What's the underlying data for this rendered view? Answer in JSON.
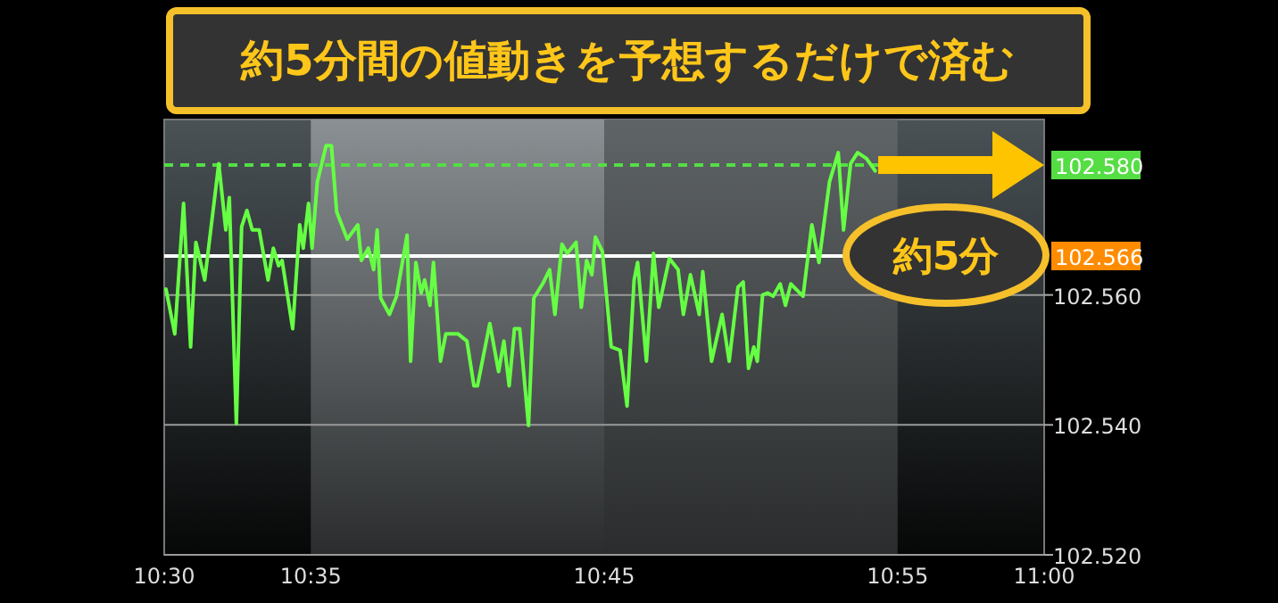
{
  "chart_data": {
    "type": "line",
    "title": "約5分間の値動きを予想するだけで済む",
    "x": [
      10.501,
      10.506,
      10.511,
      10.515,
      10.518,
      10.523,
      10.531,
      10.535,
      10.537,
      10.541,
      10.544,
      10.547,
      10.55,
      10.554,
      10.559,
      10.562,
      10.565,
      10.567,
      10.573,
      10.577,
      10.579,
      10.582,
      10.584,
      10.587,
      10.592,
      10.595,
      10.598,
      10.604,
      10.61,
      10.612,
      10.616,
      10.619,
      10.621,
      10.623,
      10.628,
      10.632,
      10.638,
      10.64,
      10.643,
      10.646,
      10.648,
      10.651,
      10.653,
      10.657,
      10.66,
      10.667,
      10.672,
      10.676,
      10.678,
      10.685,
      10.69,
      10.693,
      10.696,
      10.699,
      10.702,
      10.707,
      10.71,
      10.715,
      10.719,
      10.722,
      10.726,
      10.729,
      10.734,
      10.737,
      10.74,
      10.743,
      10.745,
      10.749,
      10.754,
      10.759,
      10.763,
      10.767,
      10.769,
      10.774,
      10.778,
      10.781,
      10.787,
      10.792,
      10.795,
      10.799,
      10.804,
      10.806,
      10.811,
      10.817,
      10.821,
      10.826,
      10.829,
      10.832,
      10.835,
      10.837,
      10.84,
      10.843,
      10.846,
      10.85,
      10.853,
      10.856,
      10.863,
      10.868,
      10.872,
      10.878,
      10.883,
      10.886,
      10.89,
      10.894,
      10.899,
      10.904
    ],
    "series": [
      {
        "color": "#66ff44",
        "values": [
          102.5609,
          102.554,
          102.5741,
          102.552,
          102.5681,
          102.5623,
          102.5802,
          102.57,
          102.575,
          102.5402,
          102.5705,
          102.573,
          102.57,
          102.57,
          102.5623,
          102.5672,
          102.5645,
          102.5653,
          102.5548,
          102.5708,
          102.5672,
          102.5741,
          102.5672,
          102.5774,
          102.583,
          102.583,
          102.5728,
          102.5686,
          102.5708,
          102.5653,
          102.5672,
          102.5639,
          102.57,
          102.5595,
          102.557,
          102.5598,
          102.5692,
          102.5498,
          102.565,
          102.5603,
          102.5623,
          102.5584,
          102.565,
          102.5498,
          102.554,
          102.554,
          102.5529,
          102.546,
          102.546,
          102.5556,
          102.5482,
          102.5529,
          102.546,
          102.5548,
          102.5548,
          102.5399,
          102.5595,
          102.5617,
          102.5639,
          102.557,
          102.5678,
          102.5664,
          102.5681,
          102.5581,
          102.5653,
          102.5631,
          102.5689,
          102.5667,
          102.552,
          102.5515,
          102.5429,
          102.5623,
          102.565,
          102.5498,
          102.5664,
          102.5581,
          102.5656,
          102.5639,
          102.557,
          102.5631,
          102.557,
          102.5636,
          102.5498,
          102.557,
          102.5498,
          102.5612,
          102.562,
          102.5487,
          102.552,
          102.5498,
          102.56,
          102.5603,
          102.5598,
          102.5617,
          102.5584,
          102.5617,
          102.5598,
          102.5708,
          102.565,
          102.5774,
          102.5819,
          102.57,
          102.5802,
          102.5819,
          102.581,
          102.5791
        ]
      }
    ],
    "xlim": [
      10.5,
      11.0
    ],
    "xticks": [
      {
        "value": 10.5,
        "label": "10:30"
      },
      {
        "value": 10.5833,
        "label": "10:35"
      },
      {
        "value": 10.75,
        "label": "10:45"
      },
      {
        "value": 10.9167,
        "label": "10:55"
      },
      {
        "value": 11.0,
        "label": "11:00"
      }
    ],
    "ylim": [
      102.52,
      102.587
    ],
    "yticks": [
      {
        "value": 102.52,
        "label": "102.520"
      },
      {
        "value": 102.54,
        "label": "102.540"
      },
      {
        "value": 102.56,
        "label": "102.560"
      }
    ],
    "grid": "y",
    "line_style": "solid",
    "ref_lines": [
      {
        "axis": "y",
        "value": 102.58,
        "label": "102.580",
        "color": "#55dd44",
        "line_style": "dashed"
      },
      {
        "axis": "y",
        "value": 102.566,
        "label": "102.566",
        "color": "#ffffff",
        "line_style": "solid"
      }
    ],
    "bands": [
      {
        "axis": "x",
        "from": 10.5833,
        "to": 10.75,
        "color": "#8a9093"
      },
      {
        "axis": "x",
        "from": 10.75,
        "to": 10.9167,
        "color": "#5f6466"
      }
    ],
    "annotations": [
      "約5分"
    ]
  }
}
